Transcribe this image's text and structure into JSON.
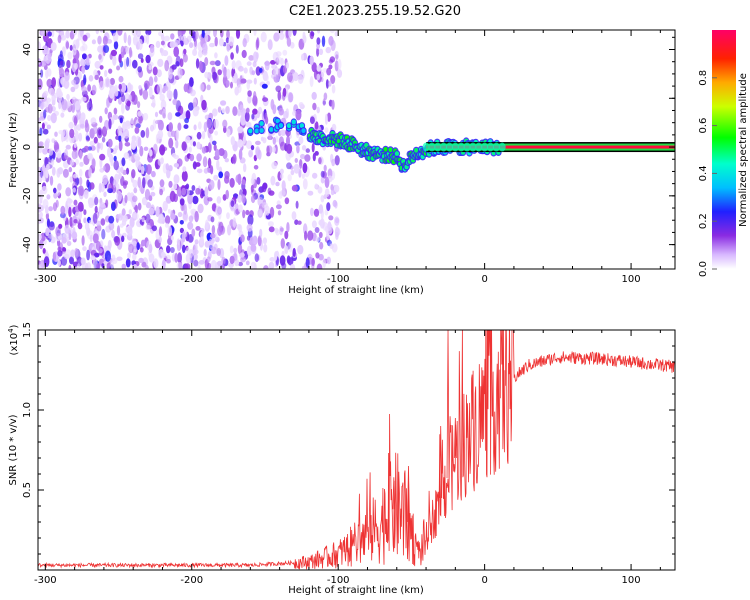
{
  "title": "C2E1.2023.255.19.52.G20",
  "chart_data": [
    {
      "type": "heatmap",
      "xlabel": "Height of straight line (km)",
      "ylabel": "Frequency (Hz)",
      "xlim": [
        -305,
        130
      ],
      "ylim": [
        -50,
        48
      ],
      "xticks": [
        -300,
        -200,
        -100,
        0,
        100
      ],
      "xticklabels": [
        "-300",
        "-200",
        "-100",
        "0",
        "100"
      ],
      "yticks": [
        -40,
        -20,
        0,
        20,
        40
      ],
      "yticklabels": [
        "-40",
        "-20",
        "0",
        "20",
        "40"
      ],
      "colorbar": {
        "label": "Normalized spectral amplitude",
        "range": [
          0.0,
          1.0
        ],
        "ticks": [
          0.0,
          0.2,
          0.4,
          0.6,
          0.8
        ],
        "ticklabels": [
          "0.0",
          "0.2",
          "0.4",
          "0.6",
          "0.8"
        ],
        "colormap": "rainbow (white-violet-blue-cyan-green-yellow-red-magenta)"
      },
      "features": {
        "noise_region_x": [
          -305,
          -105
        ],
        "noise_amplitude": 0.1,
        "doppler_trace": [
          [
            -160,
            8
          ],
          [
            -135,
            10
          ],
          [
            -115,
            4
          ],
          [
            -100,
            3
          ],
          [
            -90,
            1
          ],
          [
            -80,
            -2
          ],
          [
            -70,
            -3
          ],
          [
            -60,
            -4
          ],
          [
            -55,
            -8
          ],
          [
            -48,
            -3
          ],
          [
            -40,
            -1
          ],
          [
            -30,
            0
          ],
          [
            0,
            0
          ],
          [
            10,
            0
          ]
        ],
        "carrier_line": {
          "x": [
            -40,
            130
          ],
          "y": 0,
          "amplitude": 0.95
        }
      }
    },
    {
      "type": "line",
      "xlabel": "Height of straight line (km)",
      "ylabel": "SNR (10 * v/v)",
      "yscale_label": "(x10",
      "yscale_exp": "4",
      "yscale_close": ")",
      "xlim": [
        -305,
        130
      ],
      "ylim": [
        0,
        15000
      ],
      "xticks": [
        -300,
        -200,
        -100,
        0,
        100
      ],
      "xticklabels": [
        "-300",
        "-200",
        "-100",
        "0",
        "100"
      ],
      "yticks": [
        5000,
        10000,
        15000
      ],
      "yticklabels": [
        "0.5",
        "1.0",
        "1.5"
      ],
      "series": [
        {
          "color": "#ee3333",
          "trend": [
            [
              -305,
              300
            ],
            [
              -160,
              300
            ],
            [
              -120,
              500
            ],
            [
              -100,
              1000
            ],
            [
              -90,
              1500
            ],
            [
              -75,
              2500
            ],
            [
              -60,
              4000
            ],
            [
              -52,
              3000
            ],
            [
              -45,
              1000
            ],
            [
              -40,
              2000
            ],
            [
              -30,
              4500
            ],
            [
              -20,
              7000
            ],
            [
              -10,
              8500
            ],
            [
              0,
              10000
            ],
            [
              10,
              11000
            ],
            [
              20,
              12000
            ],
            [
              30,
              12800
            ],
            [
              50,
              13300
            ],
            [
              80,
              13200
            ],
            [
              100,
              13000
            ],
            [
              120,
              12800
            ],
            [
              130,
              12700
            ]
          ],
          "spikes": [
            [
              -25,
              15000
            ],
            [
              -52,
              6500
            ],
            [
              -62,
              5800
            ],
            [
              -30,
              9000
            ],
            [
              -20,
              9500
            ]
          ]
        }
      ]
    }
  ]
}
